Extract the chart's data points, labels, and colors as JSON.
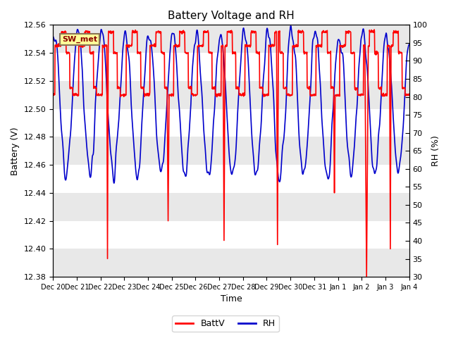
{
  "title": "Battery Voltage and RH",
  "xlabel": "Time",
  "ylabel_left": "Battery (V)",
  "ylabel_right": "RH (%)",
  "ylim_left": [
    12.38,
    12.56
  ],
  "ylim_right": [
    30,
    100
  ],
  "yticks_left": [
    12.38,
    12.4,
    12.42,
    12.44,
    12.46,
    12.48,
    12.5,
    12.52,
    12.54,
    12.56
  ],
  "yticks_right": [
    30,
    35,
    40,
    45,
    50,
    55,
    60,
    65,
    70,
    75,
    80,
    85,
    90,
    95,
    100
  ],
  "xtick_labels": [
    "Dec 20",
    "Dec 21",
    "Dec 22",
    "Dec 23",
    "Dec 24",
    "Dec 25",
    "Dec 26",
    "Dec 27",
    "Dec 28",
    "Dec 29",
    "Dec 30",
    "Dec 31",
    "Jan 1",
    "Jan 2",
    "Jan 3",
    "Jan 4"
  ],
  "annotation_text": "SW_met",
  "batt_color": "#FF0000",
  "rh_color": "#0000CC",
  "legend_batt": "BattV",
  "legend_rh": "RH",
  "bg_color": "#FFFFFF",
  "plot_bg_color": "#FFFFFF",
  "band_color_light": "#FFFFFF",
  "band_color_dark": "#E8E8E8",
  "title_fontsize": 11,
  "axis_fontsize": 9,
  "tick_fontsize": 8,
  "line_width": 1.2
}
